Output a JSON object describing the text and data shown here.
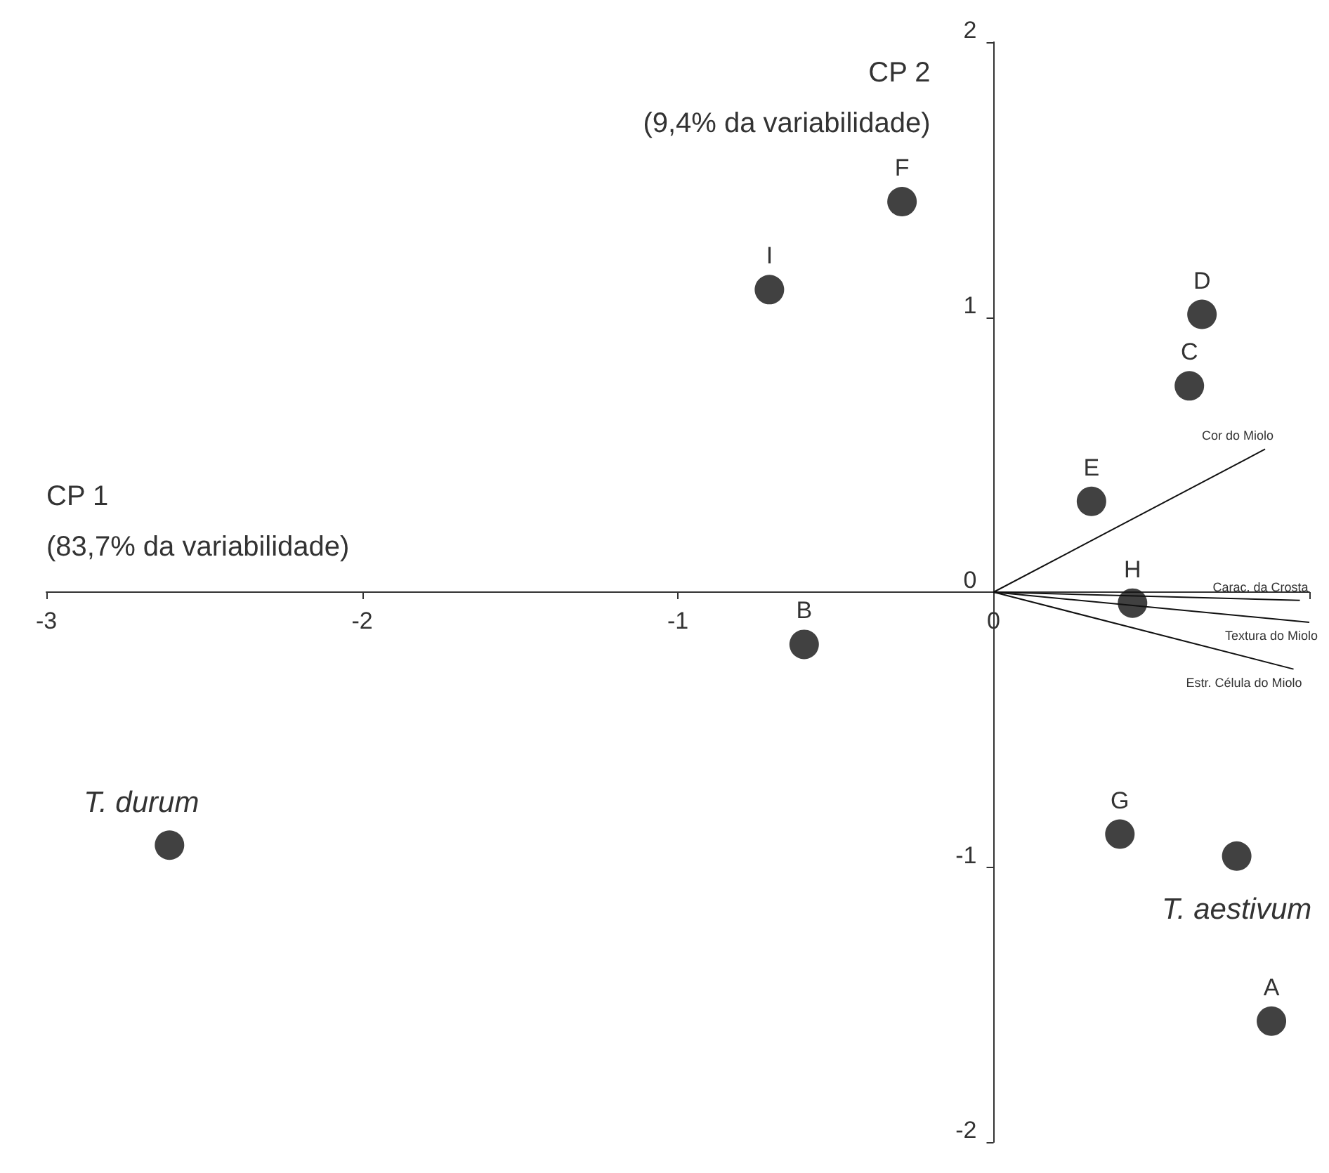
{
  "chart_data": {
    "type": "scatter",
    "xlabel": "CP 1\n(83,7% da variabilidade)",
    "ylabel": "CP 2\n(9,4% da variabilidade)",
    "xlim": [
      -3,
      1
    ],
    "xticks": [
      -3,
      -2,
      -1,
      0,
      {
        "value": 1,
        "label": null
      }
    ],
    "ylim": [
      -2,
      2
    ],
    "yticks": [
      -2,
      -1,
      0,
      1,
      2
    ],
    "legend": false,
    "marker": "circle",
    "series": [
      {
        "color": "#111111",
        "x": [
          -2.61,
          -0.6,
          -0.71,
          -0.29,
          0.66,
          0.62,
          0.31,
          0.44,
          0.4,
          0.77,
          0.88
        ],
        "values": [
          -0.92,
          -0.19,
          1.1,
          1.42,
          1.01,
          0.75,
          0.33,
          -0.04,
          -0.88,
          -0.96,
          -1.56
        ]
      },
      {
        "type": "line",
        "marker": "none",
        "name": "Cor do Miolo",
        "color": "#111111",
        "x": [
          0,
          0.86
        ],
        "values": [
          0,
          0.52
        ]
      },
      {
        "type": "line",
        "marker": "none",
        "name": "Carac. da Crosta",
        "color": "#111111",
        "x": [
          0,
          0.97
        ],
        "values": [
          0,
          -0.03
        ]
      },
      {
        "type": "line",
        "marker": "none",
        "name": "Textura do Miolo",
        "color": "#111111",
        "x": [
          0,
          1.0
        ],
        "values": [
          0,
          -0.11
        ]
      },
      {
        "type": "line",
        "marker": "none",
        "name": "Estr. Célula do Miolo",
        "color": "#111111",
        "x": [
          0,
          0.95
        ],
        "values": [
          0,
          -0.28
        ]
      }
    ],
    "annotations": [
      {
        "text": "T. durum",
        "x": -2.61,
        "y": -0.92
      },
      {
        "text": "B",
        "x": -0.6,
        "y": -0.19
      },
      {
        "text": "I",
        "x": -0.71,
        "y": 1.1
      },
      {
        "text": "F",
        "x": -0.29,
        "y": 1.42
      },
      {
        "text": "D",
        "x": 0.66,
        "y": 1.01
      },
      {
        "text": "C",
        "x": 0.62,
        "y": 0.75
      },
      {
        "text": "E",
        "x": 0.31,
        "y": 0.33
      },
      {
        "text": "H",
        "x": 0.44,
        "y": -0.04
      },
      {
        "text": "G",
        "x": 0.4,
        "y": -0.88
      },
      {
        "text": "T. aestivum",
        "x": 0.77,
        "y": -0.96
      },
      {
        "text": "A",
        "x": 0.88,
        "y": -1.56
      }
    ]
  }
}
